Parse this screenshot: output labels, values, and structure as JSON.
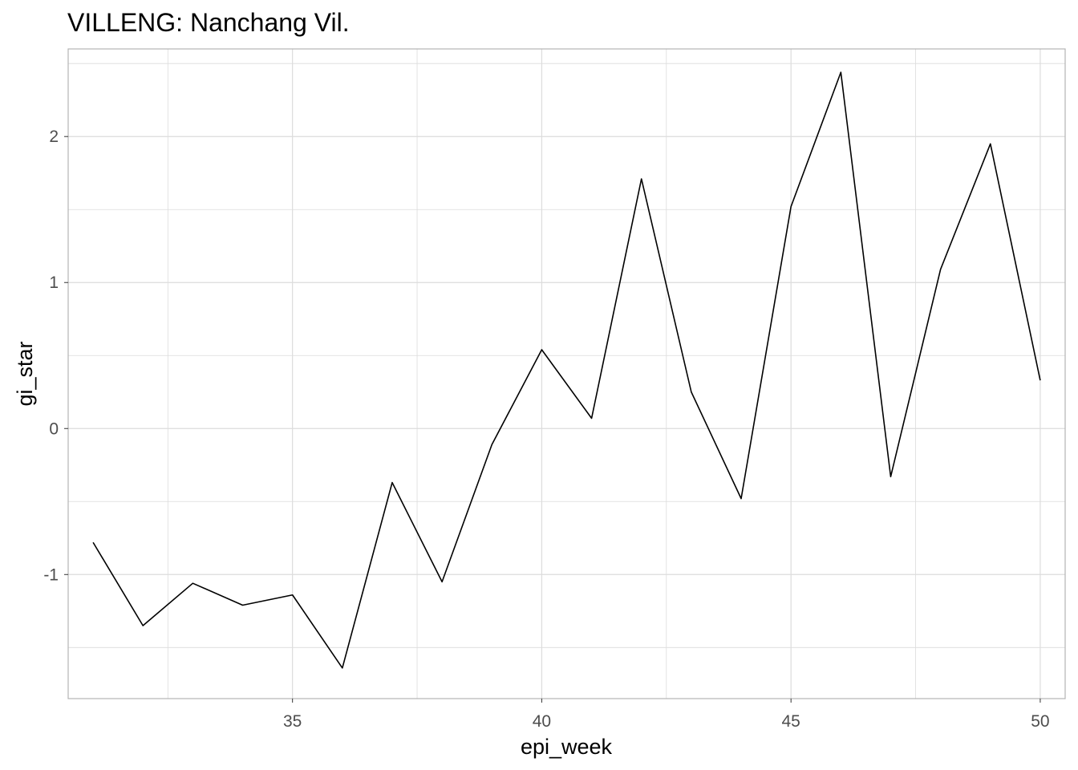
{
  "chart_data": {
    "type": "line",
    "title": "VILLENG: Nanchang Vil.",
    "xlabel": "epi_week",
    "ylabel": "gi_star",
    "xlim": [
      30.5,
      50.5
    ],
    "ylim": [
      -1.85,
      2.6
    ],
    "x_ticks": [
      35,
      40,
      45,
      50
    ],
    "x_tick_labels": [
      "35",
      "40",
      "45",
      "50"
    ],
    "y_ticks": [
      -1,
      0,
      1,
      2
    ],
    "y_tick_labels": [
      "-1",
      "0",
      "1",
      "2"
    ],
    "x_minor_ticks": [
      32.5,
      37.5,
      42.5,
      47.5
    ],
    "y_minor_ticks": [
      -1.5,
      -0.5,
      0.5,
      1.5,
      2.5
    ],
    "grid": true,
    "colors": {
      "line": "#000000",
      "grid": "#dcdcdc",
      "panel_border": "#b3b3b3"
    },
    "series": [
      {
        "x": [
          31,
          32,
          33,
          34,
          35,
          36,
          37,
          38,
          39,
          40,
          41,
          42,
          43,
          44,
          45,
          46,
          47,
          48,
          49,
          50
        ],
        "y": [
          -0.78,
          -1.35,
          -1.06,
          -1.21,
          -1.14,
          -1.64,
          -0.37,
          -1.05,
          -0.11,
          0.54,
          0.07,
          1.71,
          0.25,
          -0.48,
          1.52,
          2.44,
          -0.33,
          1.09,
          1.95,
          0.33
        ]
      }
    ]
  }
}
